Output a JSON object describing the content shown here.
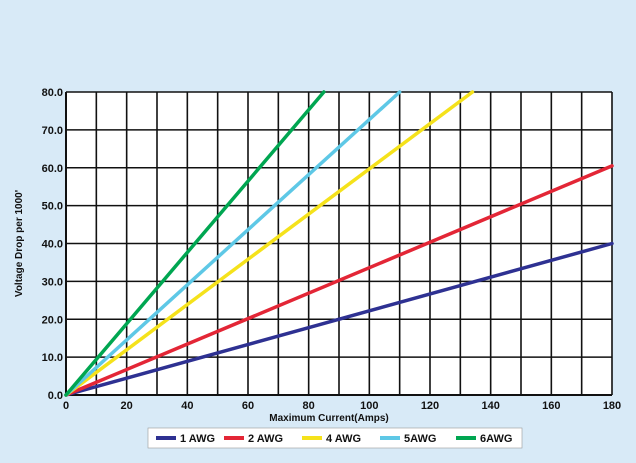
{
  "colors": {
    "background": "#d8eaf7",
    "plot_area": "#ffffff",
    "grid": "#111111",
    "legend_box": "#ffffff"
  },
  "chart_data": {
    "type": "line",
    "title": "",
    "xlabel": "Maximum Current(Amps)",
    "ylabel": "Voltage Drop per 1000'",
    "xlim": [
      0,
      180
    ],
    "ylim": [
      0,
      80
    ],
    "x_ticks": [
      0,
      20,
      40,
      60,
      80,
      100,
      120,
      140,
      160,
      180
    ],
    "x_tick_labels": [
      "0",
      "20",
      "40",
      "60",
      "80",
      "100",
      "120",
      "140",
      "160",
      "180"
    ],
    "y_ticks": [
      0,
      10,
      20,
      30,
      40,
      50,
      60,
      70,
      80
    ],
    "y_tick_labels": [
      "0.0",
      "10.0",
      "20.0",
      "30.0",
      "40.0",
      "50.0",
      "60.0",
      "70.0",
      "80.0"
    ],
    "grid": true,
    "legend_position": "bottom",
    "series": [
      {
        "name": "1 AWG",
        "color": "#2e3192",
        "x": [
          0,
          180
        ],
        "y": [
          0,
          40
        ]
      },
      {
        "name": "2 AWG",
        "color": "#e32636",
        "x": [
          0,
          180
        ],
        "y": [
          0,
          60.5
        ]
      },
      {
        "name": "4 AWG",
        "color": "#f5e21b",
        "x": [
          0,
          134
        ],
        "y": [
          0,
          80
        ]
      },
      {
        "name": "5AWG",
        "color": "#5ec8e6",
        "x": [
          0,
          110
        ],
        "y": [
          0,
          80
        ]
      },
      {
        "name": "6AWG",
        "color": "#00a651",
        "x": [
          0,
          85
        ],
        "y": [
          0,
          80
        ]
      }
    ]
  }
}
